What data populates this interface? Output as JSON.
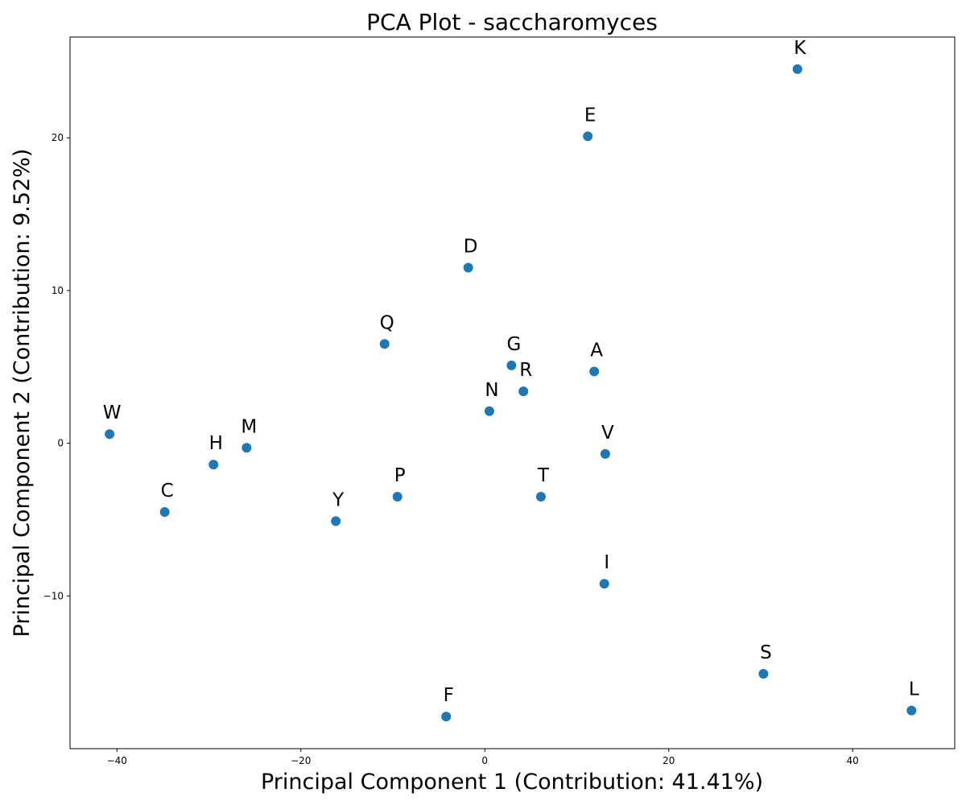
{
  "chart_data": {
    "type": "scatter",
    "title": "PCA Plot - saccharomyces",
    "xlabel": "Principal Component 1 (Contribution: 41.41%)",
    "ylabel": "Principal Component 2 (Contribution: 9.52%)",
    "xlim": [
      -45.1,
      51.1
    ],
    "ylim": [
      -20.0,
      26.6
    ],
    "xticks": [
      -40,
      -20,
      0,
      20,
      40
    ],
    "yticks": [
      -10,
      0,
      10,
      20
    ],
    "grid": false,
    "legend": "none",
    "marker_color": "#1f77b4",
    "points": [
      {
        "label": "K",
        "x": 34.0,
        "y": 24.5
      },
      {
        "label": "E",
        "x": 11.2,
        "y": 20.1
      },
      {
        "label": "D",
        "x": -1.8,
        "y": 11.5
      },
      {
        "label": "Q",
        "x": -10.9,
        "y": 6.5
      },
      {
        "label": "G",
        "x": 2.9,
        "y": 5.1
      },
      {
        "label": "A",
        "x": 11.9,
        "y": 4.7
      },
      {
        "label": "R",
        "x": 4.2,
        "y": 3.4
      },
      {
        "label": "N",
        "x": 0.5,
        "y": 2.1
      },
      {
        "label": "W",
        "x": -40.8,
        "y": 0.6
      },
      {
        "label": "M",
        "x": -25.9,
        "y": -0.3
      },
      {
        "label": "V",
        "x": 13.1,
        "y": -0.7
      },
      {
        "label": "H",
        "x": -29.5,
        "y": -1.4
      },
      {
        "label": "P",
        "x": -9.5,
        "y": -3.5
      },
      {
        "label": "T",
        "x": 6.1,
        "y": -3.5
      },
      {
        "label": "C",
        "x": -34.8,
        "y": -4.5
      },
      {
        "label": "Y",
        "x": -16.2,
        "y": -5.1
      },
      {
        "label": "I",
        "x": 13.0,
        "y": -9.2
      },
      {
        "label": "S",
        "x": 30.3,
        "y": -15.1
      },
      {
        "label": "F",
        "x": -4.2,
        "y": -17.9
      },
      {
        "label": "L",
        "x": 46.4,
        "y": -17.5
      }
    ]
  }
}
